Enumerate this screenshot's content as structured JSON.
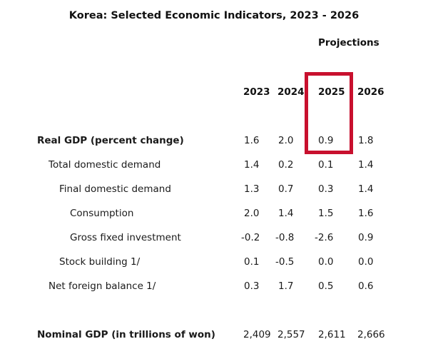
{
  "title": "Korea: Selected Economic Indicators, 2023 - 2026",
  "projections_label": "Projections",
  "years": [
    "2023",
    "2024",
    "2025",
    "2026"
  ],
  "rows": [
    {
      "label": "Real GDP (percent change)",
      "values": [
        "1.6",
        "2.0",
        "0.9",
        "1.8"
      ]
    },
    {
      "label": "Total domestic demand",
      "values": [
        "1.4",
        "0.2",
        "0.1",
        "1.4"
      ]
    },
    {
      "label": "Final domestic demand",
      "values": [
        "1.3",
        "0.7",
        "0.3",
        "1.4"
      ]
    },
    {
      "label": "Consumption",
      "values": [
        "2.0",
        "1.4",
        "1.5",
        "1.6"
      ]
    },
    {
      "label": "Gross fixed investment",
      "values": [
        "-0.2",
        "-0.8",
        "-2.6",
        "0.9"
      ]
    },
    {
      "label": "Stock building 1/",
      "values": [
        "0.1",
        "-0.5",
        "0.0",
        "0.0"
      ]
    },
    {
      "label": "Net foreign balance 1/",
      "values": [
        "0.3",
        "1.7",
        "0.5",
        "0.6"
      ]
    },
    {
      "label": "Nominal GDP (in trillions of won)",
      "values": [
        "2,409",
        "2,557",
        "2,611",
        "2,666"
      ]
    }
  ],
  "colors": {
    "highlight": "#c8102e"
  }
}
